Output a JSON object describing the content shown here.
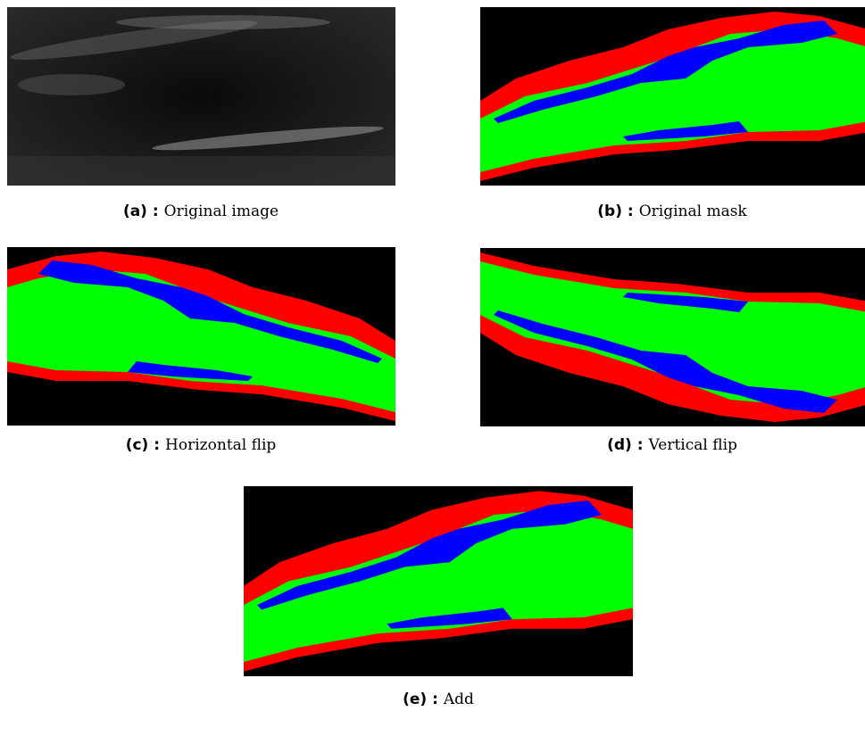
{
  "figures": [
    {
      "label": "(a) :",
      "text": "Original image"
    },
    {
      "label": "(b) :",
      "text": "Original mask"
    },
    {
      "label": "(c) :",
      "text": "Horizontal flip"
    },
    {
      "label": "(d) :",
      "text": "Vertical flip"
    },
    {
      "label": "(e) :",
      "text": "Add"
    }
  ]
}
